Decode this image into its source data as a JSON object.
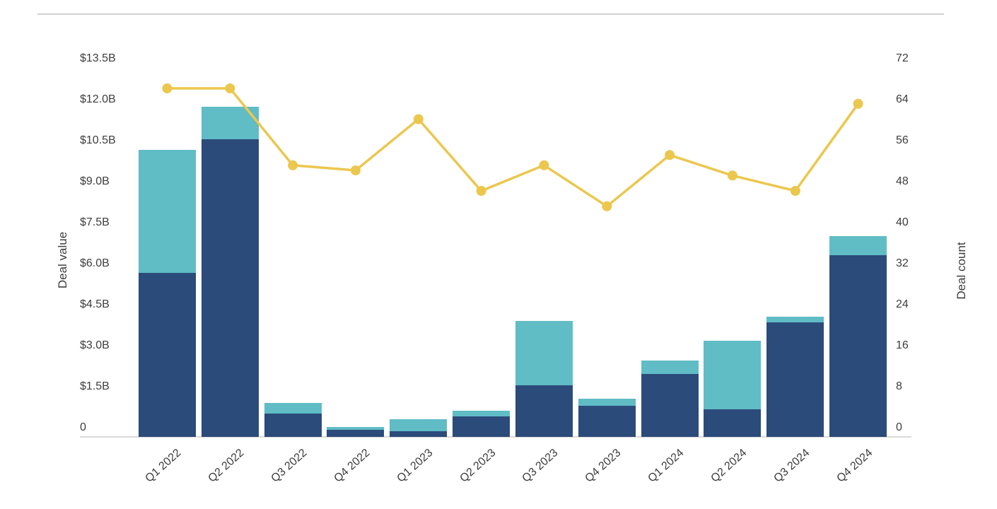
{
  "chart_data": {
    "type": "combo",
    "title": "",
    "categories": [
      "Q1 2022",
      "Q2 2022",
      "Q3 2022",
      "Q4 2022",
      "Q1 2023",
      "Q2 2023",
      "Q3 2023",
      "Q4 2023",
      "Q1 2024",
      "Q2 2024",
      "Q3 2024",
      "Q4 2024"
    ],
    "series": [
      {
        "name": "deal_value_stack_bottom",
        "type": "bar",
        "stacked": true,
        "axis": "left",
        "unit": "USD billions",
        "color": "#2b4b7a",
        "values": [
          6.0,
          10.9,
          0.85,
          0.25,
          0.2,
          0.75,
          1.9,
          1.15,
          2.3,
          1.0,
          4.2,
          6.65
        ]
      },
      {
        "name": "deal_value_stack_top",
        "type": "bar",
        "stacked": true,
        "axis": "left",
        "unit": "USD billions",
        "color": "#60bcc5",
        "values": [
          4.5,
          1.2,
          0.4,
          0.1,
          0.45,
          0.2,
          2.35,
          0.25,
          0.5,
          2.5,
          0.2,
          0.7
        ]
      },
      {
        "name": "deal_count",
        "type": "line",
        "axis": "right",
        "unit": "count",
        "color": "#ebc74e",
        "values": [
          68,
          68,
          53,
          52,
          62,
          48,
          53,
          45,
          55,
          51,
          48,
          65
        ]
      }
    ],
    "left_axis": {
      "label": "Deal value",
      "min": 0,
      "max": 13.5,
      "ticks": [
        "$13.5B",
        "$12.0B",
        "$10.5B",
        "$9.0B",
        "$7.5B",
        "$6.0B",
        "$4.5B",
        "$3.0B",
        "$1.5B",
        "0"
      ]
    },
    "right_axis": {
      "label": "Deal count",
      "min": 0,
      "max": 72,
      "ticks": [
        "72",
        "64",
        "56",
        "48",
        "40",
        "32",
        "24",
        "16",
        "8",
        "0"
      ]
    },
    "x_axis": {
      "tick_rotation_deg": -42
    },
    "grid": false,
    "legend": false,
    "colors": {
      "bar_primary": "#2b4b7a",
      "bar_secondary": "#60bcc5",
      "line": "#ebc74e",
      "text": "#3d3d3d",
      "axis_line": "#dadada",
      "top_divider": "#cfcfcf",
      "background": "#ffffff"
    }
  }
}
